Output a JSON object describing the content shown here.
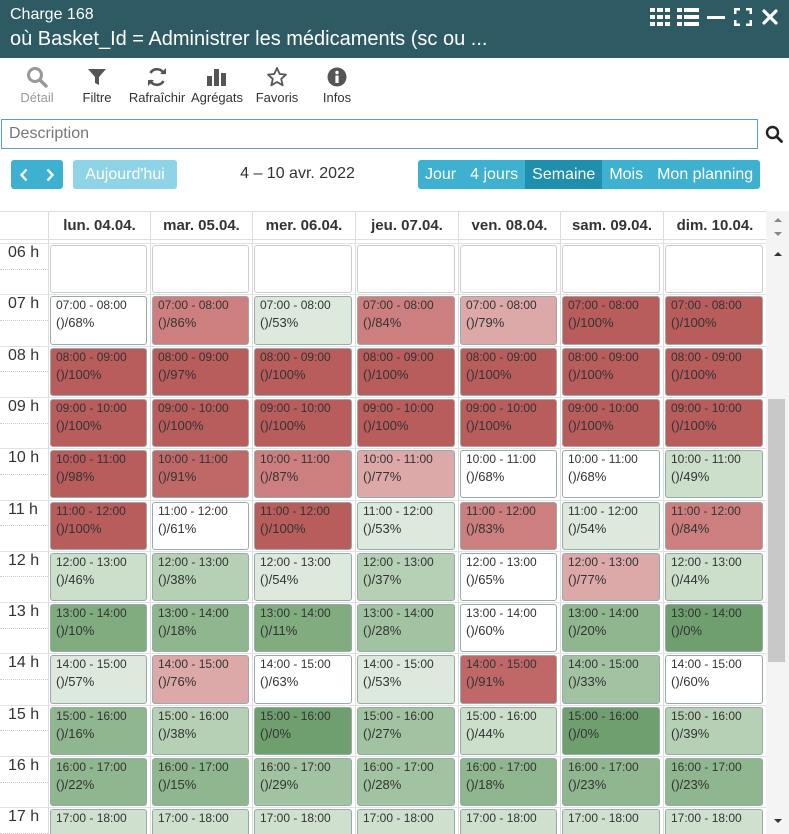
{
  "header": {
    "line1": "Charge 168",
    "line2": "où Basket_Id = Administrer les médicaments (sc ou ..."
  },
  "toolbar": [
    {
      "label": "Détail",
      "icon": "search-icon",
      "disabled": true
    },
    {
      "label": "Filtre",
      "icon": "filter-icon",
      "disabled": false
    },
    {
      "label": "Rafraîchir",
      "icon": "refresh-icon",
      "disabled": false
    },
    {
      "label": "Agrégats",
      "icon": "bar-chart-icon",
      "disabled": false
    },
    {
      "label": "Favoris",
      "icon": "star-icon",
      "disabled": false
    },
    {
      "label": "Infos",
      "icon": "info-icon",
      "disabled": false
    }
  ],
  "search": {
    "placeholder": "Description",
    "value": ""
  },
  "nav": {
    "today": "Aujourd'hui",
    "range": "4 – 10 avr. 2022"
  },
  "views": [
    {
      "label": "Jour",
      "active": false
    },
    {
      "label": "4 jours",
      "active": false
    },
    {
      "label": "Semaine",
      "active": true
    },
    {
      "label": "Mois",
      "active": false
    },
    {
      "label": "Mon planning",
      "active": false
    }
  ],
  "days": [
    "lun. 04.04.",
    "mar. 05.04.",
    "mer. 06.04.",
    "jeu. 07.04.",
    "ven. 08.04.",
    "sam. 09.04.",
    "dim. 10.04."
  ],
  "hours": [
    "06 h",
    "07 h",
    "08 h",
    "09 h",
    "10 h",
    "11 h",
    "12 h",
    "13 h",
    "14 h",
    "15 h",
    "16 h",
    "17 h"
  ],
  "slots": [
    {
      "time": "07:00 - 08:00",
      "values": [
        68,
        86,
        53,
        84,
        79,
        100,
        100
      ]
    },
    {
      "time": "08:00 - 09:00",
      "values": [
        100,
        97,
        100,
        100,
        100,
        100,
        100
      ]
    },
    {
      "time": "09:00 - 10:00",
      "values": [
        100,
        100,
        100,
        100,
        100,
        100,
        100
      ]
    },
    {
      "time": "10:00 - 11:00",
      "values": [
        98,
        91,
        87,
        77,
        68,
        68,
        49
      ]
    },
    {
      "time": "11:00 - 12:00",
      "values": [
        100,
        61,
        100,
        53,
        83,
        54,
        84
      ]
    },
    {
      "time": "12:00 - 13:00",
      "values": [
        46,
        38,
        54,
        37,
        65,
        77,
        44
      ]
    },
    {
      "time": "13:00 - 14:00",
      "values": [
        10,
        18,
        11,
        28,
        60,
        20,
        0
      ]
    },
    {
      "time": "14:00 - 15:00",
      "values": [
        57,
        76,
        63,
        53,
        91,
        33,
        60
      ]
    },
    {
      "time": "15:00 - 16:00",
      "values": [
        16,
        38,
        0,
        27,
        44,
        0,
        39
      ]
    },
    {
      "time": "16:00 - 17:00",
      "values": [
        22,
        15,
        29,
        28,
        18,
        23,
        23
      ]
    },
    {
      "time": "17:00 - 18:00",
      "values": [
        null,
        null,
        null,
        null,
        null,
        null,
        null
      ]
    }
  ],
  "colors": {
    "header_bg": "#2d5a63",
    "button": "#3eb0d0",
    "button_active": "#1f8fae"
  }
}
